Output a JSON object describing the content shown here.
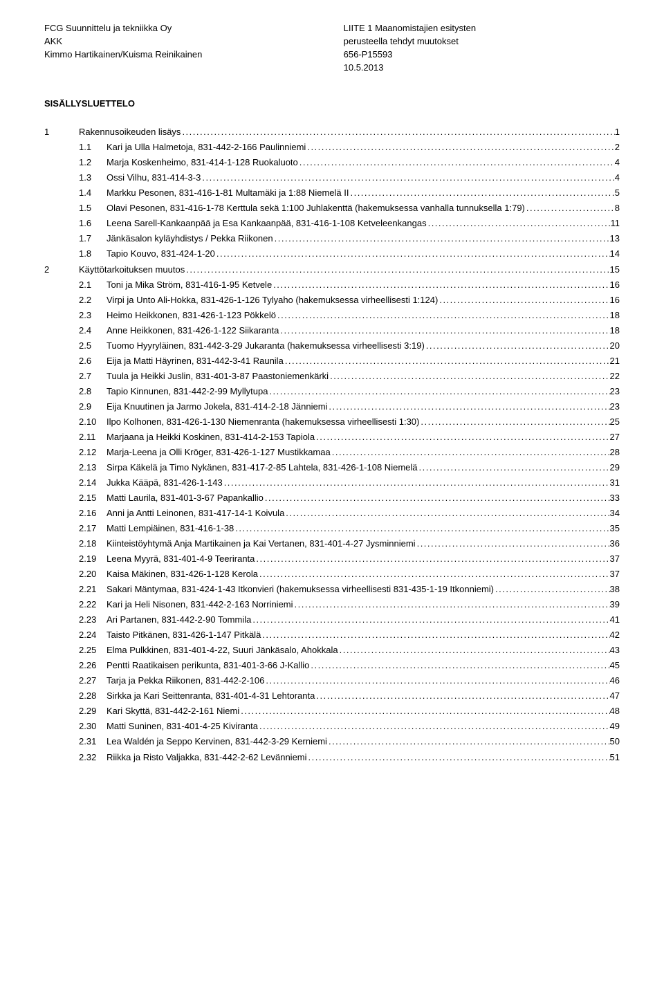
{
  "header": {
    "left": [
      "FCG Suunnittelu ja tekniikka Oy",
      "",
      "AKK",
      "Kimmo Hartikainen/Kuisma Reinikainen"
    ],
    "right": [
      "LIITE 1 Maanomistajien esitysten",
      "perusteella tehdyt muutokset",
      "656-P15593",
      "10.5.2013"
    ]
  },
  "title": "SISÄLLYSLUETTELO",
  "dot": ".",
  "toc": [
    {
      "lvl": 1,
      "num": "1",
      "label": "Rakennusoikeuden lisäys",
      "page": "1"
    },
    {
      "lvl": 2,
      "num": "1.1",
      "label": "Kari ja Ulla Halmetoja, 831-442-2-166 Paulinniemi",
      "page": "2"
    },
    {
      "lvl": 2,
      "num": "1.2",
      "label": "Marja Koskenheimo, 831-414-1-128 Ruokaluoto",
      "page": "4"
    },
    {
      "lvl": 2,
      "num": "1.3",
      "label": "Ossi Vilhu, 831-414-3-3",
      "page": "4"
    },
    {
      "lvl": 2,
      "num": "1.4",
      "label": "Markku Pesonen, 831-416-1-81 Multamäki ja 1:88 Niemelä II",
      "page": "5"
    },
    {
      "lvl": 2,
      "num": "1.5",
      "label": "Olavi Pesonen, 831-416-1-78 Kerttula sekä 1:100 Juhlakenttä (hakemuksessa vanhalla tunnuksella 1:79)",
      "page": "8"
    },
    {
      "lvl": 2,
      "num": "1.6",
      "label": "Leena Sarell-Kankaanpää ja Esa Kankaanpää, 831-416-1-108 Ketveleenkangas",
      "page": "11"
    },
    {
      "lvl": 2,
      "num": "1.7",
      "label": "Jänkäsalon kyläyhdistys / Pekka Riikonen",
      "page": "13"
    },
    {
      "lvl": 2,
      "num": "1.8",
      "label": "Tapio Kouvo, 831-424-1-20",
      "page": "14"
    },
    {
      "lvl": 1,
      "num": "2",
      "label": "Käyttötarkoituksen muutos",
      "page": "15"
    },
    {
      "lvl": 2,
      "num": "2.1",
      "label": "Toni ja Mika Ström, 831-416-1-95 Ketvele",
      "page": "16"
    },
    {
      "lvl": 2,
      "num": "2.2",
      "label": "Virpi ja Unto Ali-Hokka, 831-426-1-126 Tylyaho (hakemuksessa virheellisesti 1:124)",
      "page": "16"
    },
    {
      "lvl": 2,
      "num": "2.3",
      "label": "Heimo Heikkonen, 831-426-1-123 Pökkelö",
      "page": "18"
    },
    {
      "lvl": 2,
      "num": "2.4",
      "label": "Anne Heikkonen, 831-426-1-122 Siikaranta",
      "page": "18"
    },
    {
      "lvl": 2,
      "num": "2.5",
      "label": "Tuomo Hyyryläinen, 831-442-3-29 Jukaranta (hakemuksessa virheellisesti 3:19)",
      "page": "20"
    },
    {
      "lvl": 2,
      "num": "2.6",
      "label": "Eija ja Matti Häyrinen, 831-442-3-41 Raunila",
      "page": "21"
    },
    {
      "lvl": 2,
      "num": "2.7",
      "label": "Tuula ja Heikki Juslin, 831-401-3-87 Paastoniemenkärki",
      "page": "22"
    },
    {
      "lvl": 2,
      "num": "2.8",
      "label": "Tapio Kinnunen, 831-442-2-99 Myllytupa",
      "page": "23"
    },
    {
      "lvl": 2,
      "num": "2.9",
      "label": "Eija Knuutinen ja Jarmo Jokela, 831-414-2-18 Jänniemi",
      "page": "23"
    },
    {
      "lvl": 2,
      "num": "2.10",
      "label": "Ilpo Kolhonen, 831-426-1-130 Niemenranta (hakemuksessa virheellisesti 1:30)",
      "page": "25"
    },
    {
      "lvl": 2,
      "num": "2.11",
      "label": "Marjaana ja Heikki Koskinen, 831-414-2-153 Tapiola",
      "page": "27"
    },
    {
      "lvl": 2,
      "num": "2.12",
      "label": "Marja-Leena ja Olli Kröger, 831-426-1-127 Mustikkamaa",
      "page": "28"
    },
    {
      "lvl": 2,
      "num": "2.13",
      "label": "Sirpa Käkelä ja Timo Nykänen, 831-417-2-85 Lahtela, 831-426-1-108 Niemelä",
      "page": "29"
    },
    {
      "lvl": 2,
      "num": "2.14",
      "label": "Jukka Kääpä, 831-426-1-143",
      "page": "31"
    },
    {
      "lvl": 2,
      "num": "2.15",
      "label": "Matti Laurila, 831-401-3-67 Papankallio",
      "page": "33"
    },
    {
      "lvl": 2,
      "num": "2.16",
      "label": "Anni ja Antti Leinonen, 831-417-14-1 Koivula",
      "page": "34"
    },
    {
      "lvl": 2,
      "num": "2.17",
      "label": "Matti Lempiäinen, 831-416-1-38",
      "page": "35"
    },
    {
      "lvl": 2,
      "num": "2.18",
      "label": "Kiinteistöyhtymä Anja Martikainen ja Kai Vertanen, 831-401-4-27 Jysminniemi",
      "page": "36"
    },
    {
      "lvl": 2,
      "num": "2.19",
      "label": "Leena Myyrä, 831-401-4-9 Teeriranta",
      "page": "37"
    },
    {
      "lvl": 2,
      "num": "2.20",
      "label": "Kaisa Mäkinen, 831-426-1-128 Kerola",
      "page": "37"
    },
    {
      "lvl": 2,
      "num": "2.21",
      "label": "Sakari Mäntymaa, 831-424-1-43 Itkonvieri (hakemuksessa virheellisesti 831-435-1-19 Itkonniemi)",
      "page": "38"
    },
    {
      "lvl": 2,
      "num": "2.22",
      "label": "Kari ja Heli Nisonen, 831-442-2-163 Norriniemi",
      "page": "39"
    },
    {
      "lvl": 2,
      "num": "2.23",
      "label": "Ari Partanen, 831-442-2-90 Tommila",
      "page": "41"
    },
    {
      "lvl": 2,
      "num": "2.24",
      "label": "Taisto Pitkänen, 831-426-1-147 Pitkälä",
      "page": "42"
    },
    {
      "lvl": 2,
      "num": "2.25",
      "label": "Elma Pulkkinen, 831-401-4-22, Suuri Jänkäsalo, Ahokkala",
      "page": "43"
    },
    {
      "lvl": 2,
      "num": "2.26",
      "label": "Pentti Raatikaisen perikunta, 831-401-3-66 J-Kallio",
      "page": "45"
    },
    {
      "lvl": 2,
      "num": "2.27",
      "label": "Tarja ja Pekka Riikonen, 831-442-2-106",
      "page": "46"
    },
    {
      "lvl": 2,
      "num": "2.28",
      "label": "Sirkka ja Kari Seittenranta, 831-401-4-31 Lehtoranta",
      "page": "47"
    },
    {
      "lvl": 2,
      "num": "2.29",
      "label": "Kari Skyttä, 831-442-2-161 Niemi",
      "page": "48"
    },
    {
      "lvl": 2,
      "num": "2.30",
      "label": "Matti Suninen, 831-401-4-25 Kiviranta",
      "page": "49"
    },
    {
      "lvl": 2,
      "num": "2.31",
      "label": "Lea Waldén ja Seppo Kervinen, 831-442-3-29 Kerniemi",
      "page": "50"
    },
    {
      "lvl": 2,
      "num": "2.32",
      "label": "Riikka ja Risto Valjakka, 831-442-2-62 Levänniemi",
      "page": "51"
    }
  ]
}
